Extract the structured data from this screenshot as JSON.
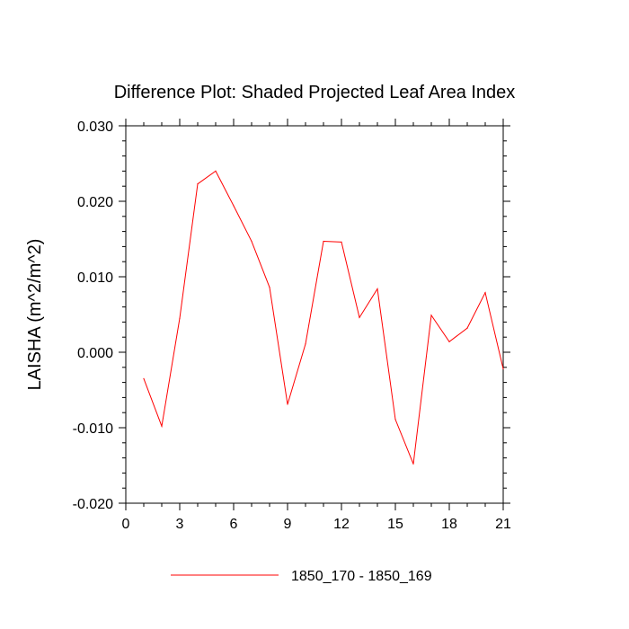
{
  "chart_data": {
    "type": "line",
    "title": "Difference Plot: Shaded Projected Leaf Area Index",
    "xlabel": "",
    "ylabel": "LAISHA  (m^2/m^2)",
    "xlim": [
      0,
      21
    ],
    "ylim": [
      -0.02,
      0.03
    ],
    "x_ticks": [
      0,
      3,
      6,
      9,
      12,
      15,
      18,
      21
    ],
    "x_tick_labels": [
      "0",
      "3",
      "6",
      "9",
      "12",
      "15",
      "18",
      "21"
    ],
    "y_ticks": [
      -0.02,
      -0.01,
      0.0,
      0.01,
      0.02,
      0.03
    ],
    "y_tick_labels": [
      "-0.020",
      "-0.010",
      "0.000",
      "0.010",
      "0.020",
      "0.030"
    ],
    "grid": false,
    "legend_position": "bottom",
    "series": [
      {
        "name": "1850_170 - 1850_169",
        "color": "#ff0000",
        "x": [
          1,
          2,
          3,
          4,
          5,
          6,
          7,
          8,
          9,
          10,
          11,
          12,
          13,
          14,
          15,
          16,
          17,
          18,
          19,
          20,
          21
        ],
        "values": [
          -0.0035,
          -0.0098,
          0.0045,
          0.0223,
          0.024,
          0.0194,
          0.0147,
          0.0086,
          -0.0069,
          0.0011,
          0.0147,
          0.0146,
          0.0046,
          0.0084,
          -0.0089,
          -0.0148,
          0.0049,
          0.0014,
          0.0032,
          0.0079,
          -0.0022
        ]
      }
    ]
  }
}
